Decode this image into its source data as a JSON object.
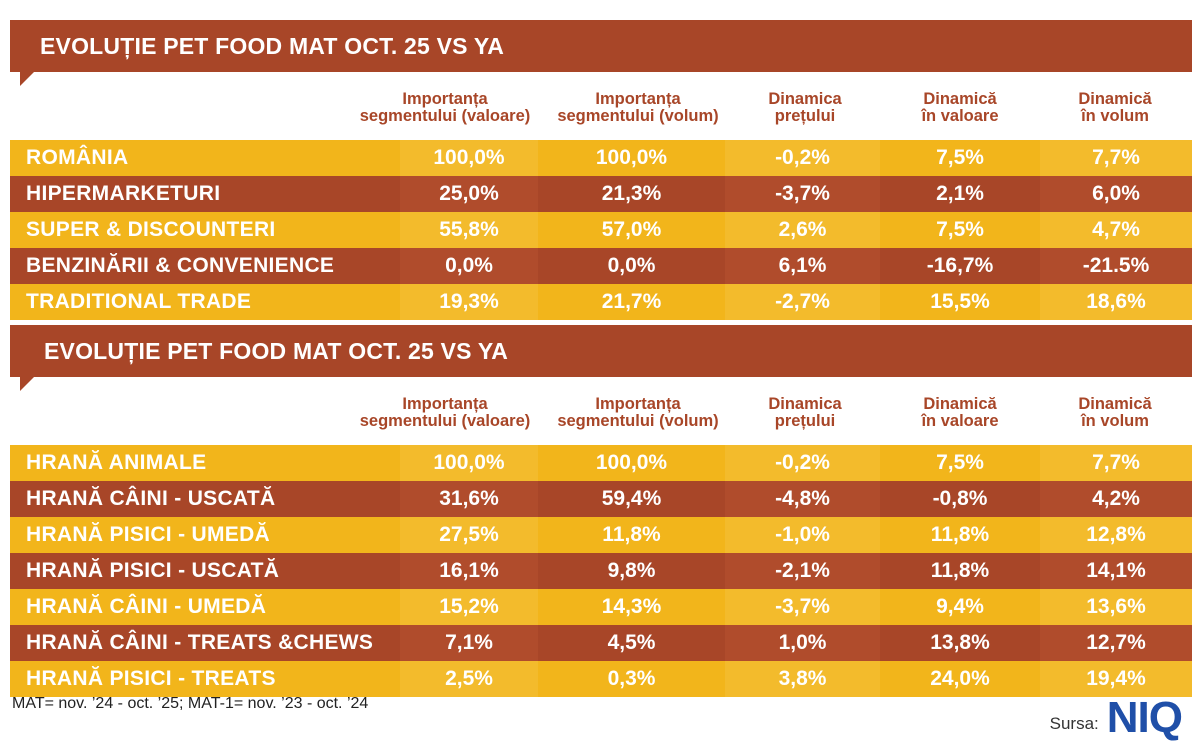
{
  "table1": {
    "title": "EVOLUȚIE PET FOOD MAT OCT. 25 VS YA",
    "headers": [
      [
        "Importanța",
        "segmentului (valoare)"
      ],
      [
        "Importanța",
        "segmentului (volum)"
      ],
      [
        "Dinamica",
        "prețului"
      ],
      [
        "Dinamică",
        "în valoare"
      ],
      [
        "Dinamică",
        "în volum"
      ]
    ],
    "rows": [
      [
        "ROMÂNIA",
        "100,0%",
        "100,0%",
        "-0,2%",
        "7,5%",
        "7,7%"
      ],
      [
        "HIPERMARKETURI",
        "25,0%",
        "21,3%",
        "-3,7%",
        "2,1%",
        "6,0%"
      ],
      [
        "SUPER & DISCOUNTERI",
        "55,8%",
        "57,0%",
        "2,6%",
        "7,5%",
        "4,7%"
      ],
      [
        "BENZINĂRII & CONVENIENCE",
        "0,0%",
        "0,0%",
        "6,1%",
        "-16,7%",
        "-21.5%"
      ],
      [
        "TRADITIONAL TRADE",
        "19,3%",
        "21,7%",
        "-2,7%",
        "15,5%",
        "18,6%"
      ]
    ]
  },
  "table2": {
    "title": "EVOLUȚIE PET FOOD MAT OCT. 25 VS YA",
    "headers": [
      [
        "Importanța",
        "segmentului (valoare)"
      ],
      [
        "Importanța",
        "segmentului (volum)"
      ],
      [
        "Dinamica",
        "prețului"
      ],
      [
        "Dinamică",
        "în valoare"
      ],
      [
        "Dinamică",
        "în volum"
      ]
    ],
    "rows": [
      [
        "HRANĂ ANIMALE",
        "100,0%",
        "100,0%",
        "-0,2%",
        "7,5%",
        "7,7%"
      ],
      [
        "HRANĂ CÂINI - USCATĂ",
        "31,6%",
        "59,4%",
        "-4,8%",
        "-0,8%",
        "4,2%"
      ],
      [
        "HRANĂ PISICI - UMEDĂ",
        "27,5%",
        "11,8%",
        "-1,0%",
        "11,8%",
        "12,8%"
      ],
      [
        "HRANĂ PISICI - USCATĂ",
        "16,1%",
        "9,8%",
        "-2,1%",
        "11,8%",
        "14,1%"
      ],
      [
        "HRANĂ CÂINI - UMEDĂ",
        "15,2%",
        "14,3%",
        "-3,7%",
        "9,4%",
        "13,6%"
      ],
      [
        "HRANĂ CÂINI - TREATS &CHEWS",
        "7,1%",
        "4,5%",
        "1,0%",
        "13,8%",
        "12,7%"
      ],
      [
        "HRANĂ PISICI - TREATS",
        "2,5%",
        "0,3%",
        "3,8%",
        "24,0%",
        "19,4%"
      ]
    ]
  },
  "footnote": "MAT= nov. ’24 - oct. ’25; MAT-1= nov. ’23 - oct. ’24",
  "source_label": "Sursa:",
  "source_logo": "NIQ",
  "colors": {
    "brown": "#a84628",
    "yellow": "#f2b51b",
    "logo_blue": "#1f4fa8"
  }
}
